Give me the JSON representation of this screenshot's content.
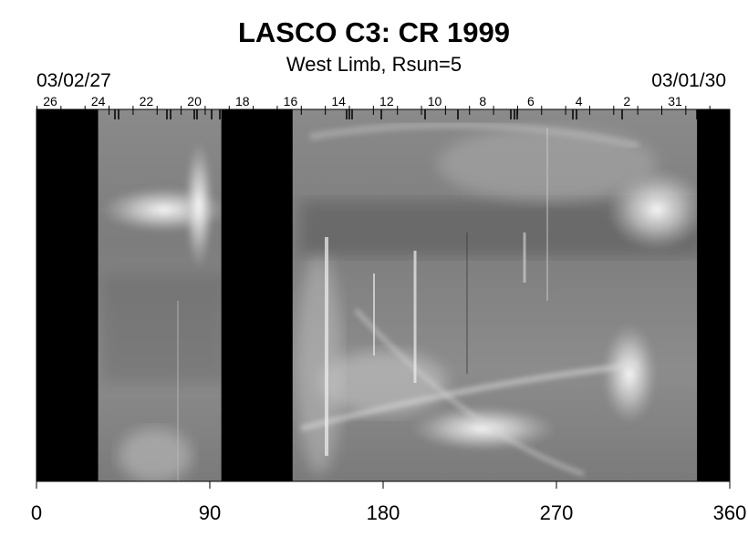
{
  "title": "LASCO C3: CR 1999",
  "subtitle": "West Limb, Rsun=5",
  "date_start": "03/02/27",
  "date_end": "03/01/30",
  "colors": {
    "gap": "#000000",
    "background": "#ffffff",
    "frame": "#000000"
  },
  "day_labels": [
    "26",
    "24",
    "22",
    "20",
    "18",
    "16",
    "14",
    "12",
    "10",
    "8",
    "6",
    "4",
    "2",
    "31"
  ],
  "x_axis": {
    "min": 0,
    "max": 360,
    "ticks": [
      0,
      90,
      180,
      270,
      360
    ],
    "tick_labels": [
      "0",
      "90",
      "180",
      "270",
      "360"
    ]
  },
  "data_gaps_longitude": [
    [
      0,
      32
    ],
    [
      96,
      133
    ],
    [
      343,
      360
    ]
  ]
}
